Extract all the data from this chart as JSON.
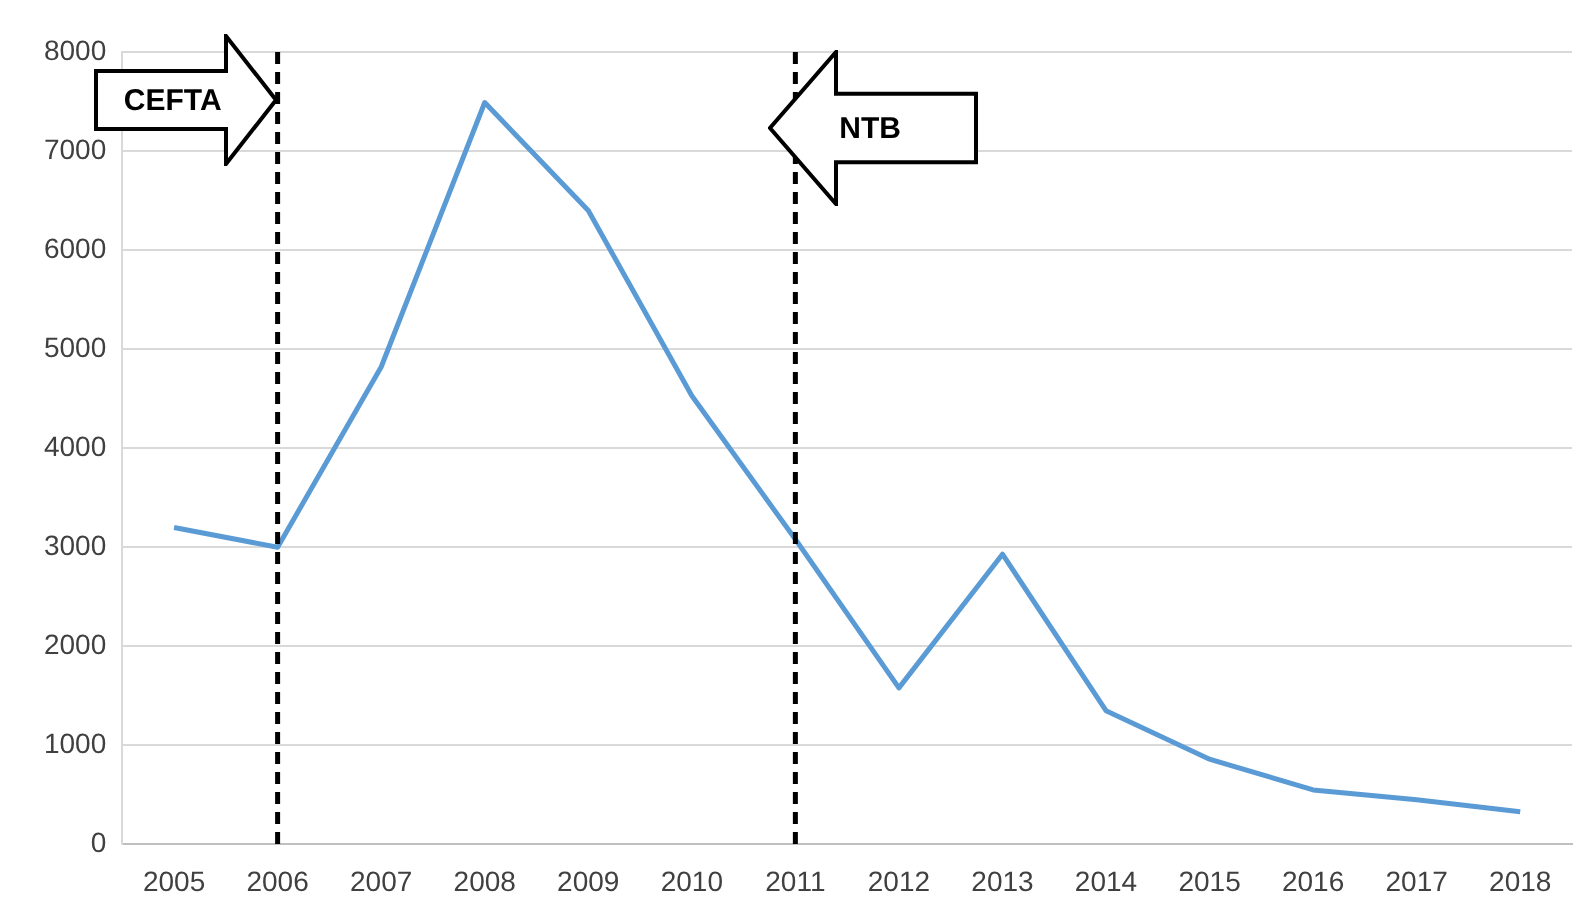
{
  "chart_data": {
    "type": "line",
    "categories": [
      "2005",
      "2006",
      "2007",
      "2008",
      "2009",
      "2010",
      "2011",
      "2012",
      "2013",
      "2014",
      "2015",
      "2016",
      "2017",
      "2018"
    ],
    "series": [
      {
        "color": "#5b9bd5",
        "values": [
          3200,
          3000,
          4820,
          7490,
          6400,
          4530,
          3080,
          1580,
          2930,
          1350,
          860,
          550,
          450,
          330
        ]
      }
    ],
    "ylim": [
      0,
      8000
    ],
    "yticks": [
      0,
      1000,
      2000,
      3000,
      4000,
      5000,
      6000,
      7000,
      8000
    ],
    "grid": "y",
    "legend": false,
    "marker": "none",
    "line_style": "solid",
    "ref_lines": [
      {
        "axis": "x",
        "value": "2006",
        "label": "CEFTA",
        "color": "#000000",
        "line_style": "dashed"
      },
      {
        "axis": "x",
        "value": "2011",
        "label": "NTB",
        "color": "#000000",
        "line_style": "dashed"
      }
    ]
  }
}
